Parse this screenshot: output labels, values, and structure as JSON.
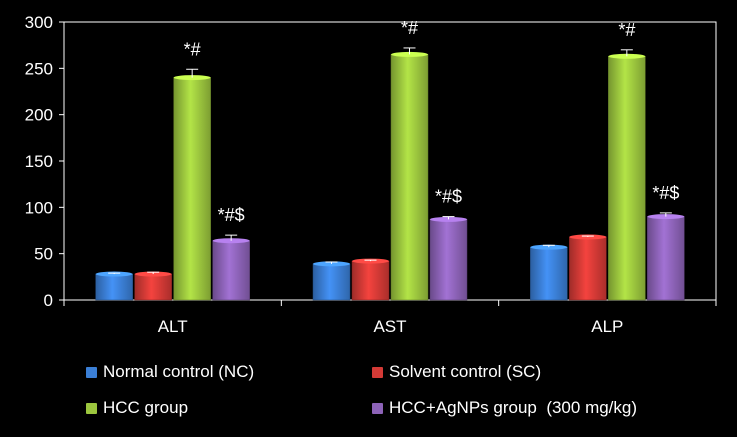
{
  "chart_data": {
    "type": "bar",
    "title": "",
    "xlabel": "",
    "ylabel": "",
    "ylim": [
      0,
      300
    ],
    "yticks": [
      0,
      50,
      100,
      150,
      200,
      250,
      300
    ],
    "grid": false,
    "legend_position": "bottom",
    "categories": [
      "ALT",
      "AST",
      "ALP"
    ],
    "series": [
      {
        "name": "Normal control (NC)",
        "color": "#3b7fd6",
        "values": [
          28,
          39,
          57
        ],
        "errors": [
          1,
          2,
          2
        ],
        "annotations": [
          "",
          "",
          ""
        ]
      },
      {
        "name": "Solvent control (SC)",
        "color": "#d43a36",
        "values": [
          28,
          42,
          68
        ],
        "errors": [
          2,
          1,
          1
        ],
        "annotations": [
          "",
          "",
          ""
        ]
      },
      {
        "name": "HCC group",
        "color": "#9cc63e",
        "values": [
          240,
          265,
          263
        ],
        "errors": [
          9,
          7,
          7
        ],
        "annotations": [
          "*#",
          "*#",
          "*#"
        ]
      },
      {
        "name": "HCC+AgNPs group  (300 mg/kg)",
        "color": "#8d63b8",
        "values": [
          64,
          87,
          90
        ],
        "errors": [
          6,
          3,
          4
        ],
        "annotations": [
          "*#$",
          "*#$",
          "*#$"
        ]
      }
    ]
  }
}
